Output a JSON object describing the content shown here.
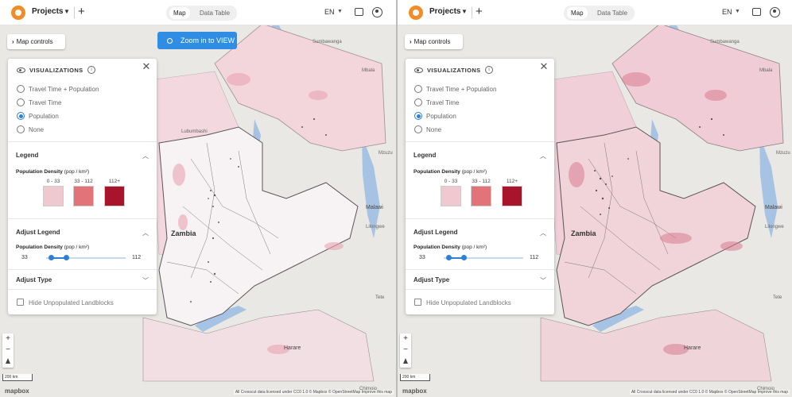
{
  "colors": {
    "accent": "#2f7ed8",
    "zoom_button": "#2f8de4",
    "logo": "#f28c28",
    "swatch_low": "#f0c8d0",
    "swatch_mid": "#e27378",
    "swatch_high": "#a8142c",
    "water": "#a7c3e4",
    "land": "#e9e8e4",
    "country": "#f7edf0"
  },
  "panes": [
    {
      "topbar": {
        "projects_label": "Projects",
        "tabs": [
          "Map",
          "Data Table"
        ],
        "active_tab": "Map",
        "language": "EN",
        "icons": [
          "logo-icon",
          "caret-down-icon",
          "plus-icon",
          "chat-icon",
          "user-icon"
        ]
      },
      "map_controls_label": "Map controls",
      "zoom_button_label": "Zoom in to VIEW",
      "panel": {
        "visualizations_title": "VISUALIZATIONS",
        "options": [
          "Travel Time + Population",
          "Travel Time",
          "Population",
          "None"
        ],
        "selected_option": "Population",
        "legend_title": "Legend",
        "legend_subtitle": "Population Density",
        "legend_unit": "(pop / km²)",
        "legend_bins": [
          "0 - 33",
          "33 - 112",
          "112+"
        ],
        "adjust_legend_title": "Adjust Legend",
        "adjust_subtitle": "Population Density",
        "adjust_unit": "(pop / km²)",
        "slider_min": "33",
        "slider_max": "112",
        "adjust_type_title": "Adjust Type",
        "hide_unpopulated_label": "Hide Unpopulated Landblocks",
        "hide_unpopulated_checked": false
      },
      "map_labels": {
        "zambia": "Zambia",
        "lubumbashi": "Lubumbashi",
        "malawi": "Malawi",
        "lilongwe": "Lilongwe",
        "harare": "Harare",
        "sumbawanga": "Sumbawanga",
        "mbala": "Mbala",
        "mzuzu": "Mzuzu",
        "tete": "Tete",
        "chimoio": "Chimoio"
      },
      "scale_label": "200 km",
      "mapbox_label": "mapbox",
      "attribution": "All Crosscut data licensed under CC0 1.0 © Mapbox © OpenStreetMap Improve this map"
    },
    {
      "topbar": {
        "projects_label": "Projects",
        "tabs": [
          "Map",
          "Data Table"
        ],
        "active_tab": "Map",
        "language": "EN",
        "icons": [
          "logo-icon",
          "caret-down-icon",
          "plus-icon",
          "chat-icon",
          "user-icon"
        ]
      },
      "map_controls_label": "Map controls",
      "panel": {
        "visualizations_title": "VISUALIZATIONS",
        "options": [
          "Travel Time + Population",
          "Travel Time",
          "Population",
          "None"
        ],
        "selected_option": "Population",
        "legend_title": "Legend",
        "legend_subtitle": "Population Density",
        "legend_unit": "(pop / km²)",
        "legend_bins": [
          "0 - 33",
          "33 - 112",
          "112+"
        ],
        "adjust_legend_title": "Adjust Legend",
        "adjust_subtitle": "Population Density",
        "adjust_unit": "(pop / km²)",
        "slider_min": "33",
        "slider_max": "112",
        "adjust_type_title": "Adjust Type",
        "hide_unpopulated_label": "Hide Unpopulated Landblocks",
        "hide_unpopulated_checked": false
      },
      "map_labels": {
        "zambia": "Zambia",
        "malawi": "Malawi",
        "lilongwe": "Lilongwe",
        "harare": "Harare",
        "sumbawanga": "Sumbawanga",
        "mbala": "Mbala",
        "mzuzu": "Mzuzu",
        "tete": "Tete",
        "chimoio": "Chimoio"
      },
      "scale_label": "200 km",
      "mapbox_label": "mapbox",
      "attribution": "All Crosscut data licensed under CC0 1.0 © Mapbox © OpenStreetMap Improve this map"
    }
  ]
}
